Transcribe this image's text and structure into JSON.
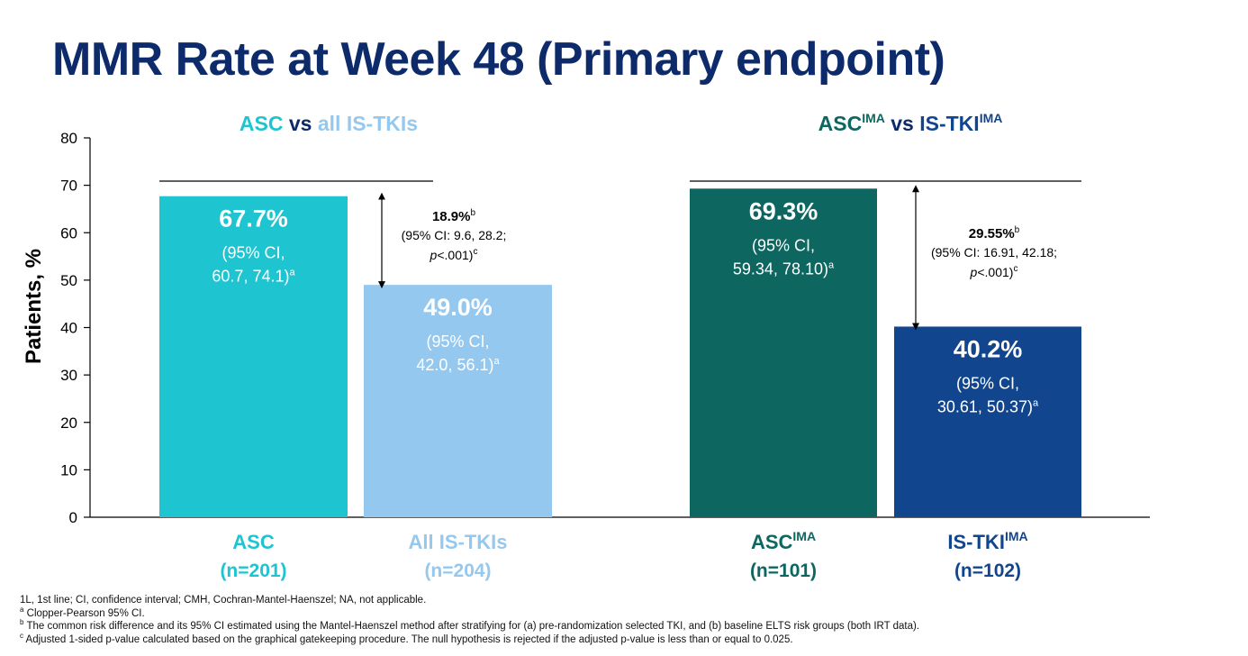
{
  "title": "MMR Rate at Week 48 (Primary endpoint)",
  "colors": {
    "asc": "#1ec4d0",
    "all_is_tki": "#95c8ee",
    "asc_ima": "#0d665f",
    "is_tki_ima": "#11468f",
    "title": "#0d2a6b"
  },
  "chart_data": {
    "type": "bar",
    "ylabel": "Patients, %",
    "ylim": [
      0,
      80
    ],
    "yticks": [
      0,
      10,
      20,
      30,
      40,
      50,
      60,
      70,
      80
    ],
    "grid": false,
    "legend": "none",
    "panels": [
      {
        "heading": [
          {
            "text": "ASC",
            "color": "#1ec4d0"
          },
          {
            "text": " vs ",
            "color": "#0d2a6b"
          },
          {
            "text": "all IS-TKIs",
            "color": "#95c8ee"
          }
        ],
        "bars": [
          {
            "category": "ASC",
            "n_label": "(n=201)",
            "value": 67.7,
            "value_label": "67.7%",
            "ci_lines": [
              "(95% CI,",
              "60.7, 74.1)"
            ],
            "ci_sup": "a",
            "color": "#1ec4d0",
            "label_color": "#1ec4d0"
          },
          {
            "category": "All IS-TKIs",
            "n_label": "(n=204)",
            "value": 49.0,
            "value_label": "49.0%",
            "ci_lines": [
              "(95% CI,",
              "42.0, 56.1)"
            ],
            "ci_sup": "a",
            "color": "#95c8ee",
            "label_color": "#95c8ee"
          }
        ],
        "difference": {
          "value_label": "18.9%",
          "sup": "b",
          "ci_text": "(95% CI: 9.6, 28.2;",
          "p_italic": "p",
          "p_text": "<.001)",
          "p_sup": "c"
        }
      },
      {
        "heading": [
          {
            "text": "ASC",
            "color": "#0d665f",
            "sup": "IMA"
          },
          {
            "text": " vs ",
            "color": "#0d2a6b"
          },
          {
            "text": "IS-TKI",
            "color": "#11468f",
            "sup": "IMA"
          }
        ],
        "bars": [
          {
            "category": "ASC",
            "category_sup": "IMA",
            "n_label": "(n=101)",
            "value": 69.3,
            "value_label": "69.3%",
            "ci_lines": [
              "(95% CI,",
              "59.34, 78.10)"
            ],
            "ci_sup": "a",
            "color": "#0d665f",
            "label_color": "#0d665f"
          },
          {
            "category": "IS-TKI",
            "category_sup": "IMA",
            "n_label": "(n=102)",
            "value": 40.2,
            "value_label": "40.2%",
            "ci_lines": [
              "(95% CI,",
              "30.61, 50.37)"
            ],
            "ci_sup": "a",
            "color": "#11468f",
            "label_color": "#11468f"
          }
        ],
        "difference": {
          "value_label": "29.55%",
          "sup": "b",
          "ci_text": "(95% CI: 16.91, 42.18;",
          "p_italic": "p",
          "p_text": "<.001)",
          "p_sup": "c"
        }
      }
    ]
  },
  "footnotes": [
    {
      "mark": "",
      "text": "1L, 1st line; CI, confidence interval; CMH, Cochran-Mantel-Haenszel; NA, not applicable."
    },
    {
      "mark": "a",
      "text": " Clopper-Pearson 95% CI."
    },
    {
      "mark": "b",
      "text": " The common risk difference and its 95% CI estimated using the Mantel-Haenszel method after stratifying for (a) pre-randomization selected TKI, and (b) baseline ELTS risk groups (both IRT data)."
    },
    {
      "mark": "c",
      "text": " Adjusted 1-sided p-value calculated based on the graphical gatekeeping procedure. The null hypothesis is rejected if the adjusted p-value is less than or equal to 0.025."
    }
  ]
}
